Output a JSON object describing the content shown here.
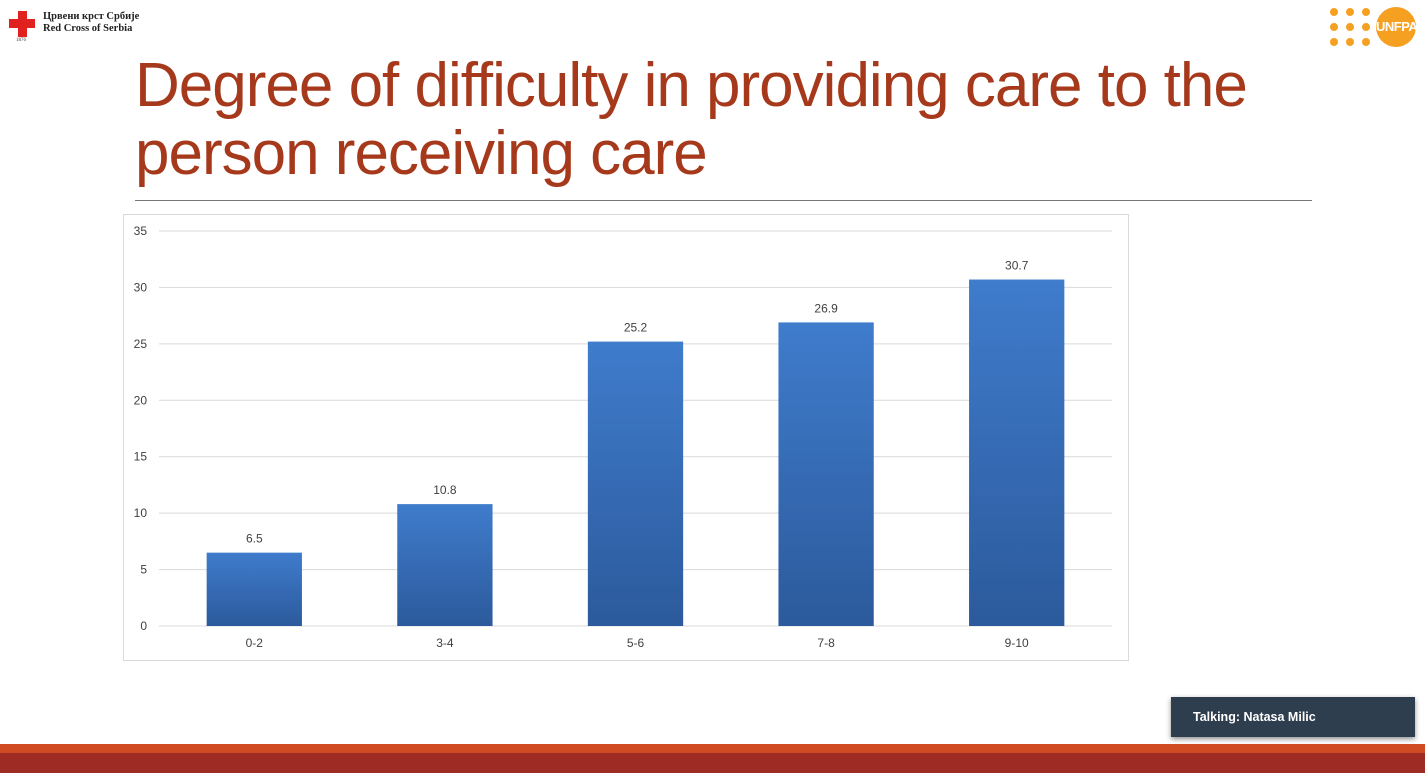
{
  "header": {
    "left_logo": {
      "text_line1": "Црвени крст Србије",
      "text_line2": "Red Cross of Serbia",
      "year": "1876"
    },
    "right_logo": {
      "text": "UNFPA"
    }
  },
  "slide": {
    "title": "Degree of difficulty in providing care to the person receiving care"
  },
  "chart_data": {
    "type": "bar",
    "categories": [
      "0-2",
      "3-4",
      "5-6",
      "7-8",
      "9-10"
    ],
    "values": [
      6.5,
      10.8,
      25.2,
      26.9,
      30.7
    ],
    "data_labels": [
      "6.5",
      "10.8",
      "25.2",
      "26.9",
      "30.7"
    ],
    "ylim": [
      0,
      35
    ],
    "yticks": [
      0,
      5,
      10,
      15,
      20,
      25,
      30,
      35
    ],
    "grid": true,
    "legend": "none",
    "title": "",
    "xlabel": "",
    "ylabel": "",
    "colors": {
      "bar_top": "#3f7ccc",
      "bar_bottom": "#2c5a9c",
      "grid": "#d9d9d9",
      "text": "#404040"
    }
  },
  "meeting": {
    "talking_label": "Talking: Natasa Milic"
  },
  "colors": {
    "title": "#a6391b",
    "footer_light": "#d04a22",
    "footer_dark": "#9e2b24",
    "talking_bg": "#2e3e4e"
  }
}
